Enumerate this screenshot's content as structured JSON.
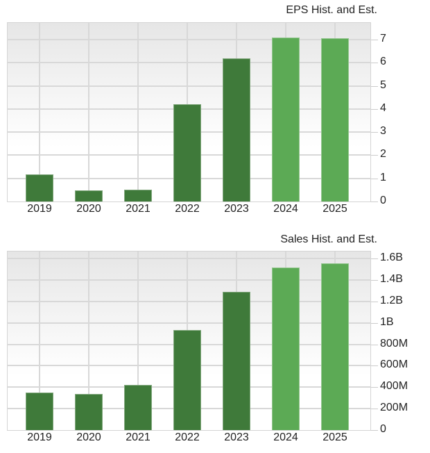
{
  "colors": {
    "historical": "#3f7a3a",
    "estimate": "#5caa55"
  },
  "charts": [
    {
      "title": "EPS Hist. and Est.",
      "y_tick_labels": [
        "0",
        "1",
        "2",
        "3",
        "4",
        "5",
        "6",
        "7"
      ],
      "x_labels": [
        "2019",
        "2020",
        "2021",
        "2022",
        "2023",
        "2024",
        "2025"
      ]
    },
    {
      "title": "Sales Hist. and Est.",
      "y_tick_labels": [
        "0",
        "200M",
        "400M",
        "600M",
        "800M",
        "1B",
        "1.2B",
        "1.4B",
        "1.6B"
      ],
      "x_labels": [
        "2019",
        "2020",
        "2021",
        "2022",
        "2023",
        "2024",
        "2025"
      ]
    }
  ],
  "chart_data": [
    {
      "type": "bar",
      "title": "EPS Hist. and Est.",
      "xlabel": "",
      "ylabel": "",
      "categories": [
        "2019",
        "2020",
        "2021",
        "2022",
        "2023",
        "2024",
        "2025"
      ],
      "series": [
        {
          "name": "Historical",
          "values": [
            1.17,
            0.48,
            0.51,
            4.2,
            6.2,
            null,
            null
          ],
          "color": "#3f7a3a"
        },
        {
          "name": "Estimate",
          "values": [
            null,
            null,
            null,
            null,
            null,
            7.08,
            7.05
          ],
          "color": "#5caa55"
        }
      ],
      "values": [
        1.17,
        0.48,
        0.51,
        4.2,
        6.2,
        7.08,
        7.05
      ],
      "estimate_flags": [
        false,
        false,
        false,
        false,
        false,
        true,
        true
      ],
      "ylim": [
        0,
        7.7
      ],
      "y_ticks": [
        0,
        1,
        2,
        3,
        4,
        5,
        6,
        7
      ],
      "y_axis_position": "right",
      "grid": true,
      "legend": null
    },
    {
      "type": "bar",
      "title": "Sales Hist. and Est.",
      "xlabel": "",
      "ylabel": "",
      "categories": [
        "2019",
        "2020",
        "2021",
        "2022",
        "2023",
        "2024",
        "2025"
      ],
      "series": [
        {
          "name": "Historical",
          "values": [
            350000000,
            337000000,
            420000000,
            930000000,
            1290000000,
            null,
            null
          ],
          "color": "#3f7a3a"
        },
        {
          "name": "Estimate",
          "values": [
            null,
            null,
            null,
            null,
            null,
            1515000000,
            1555000000
          ],
          "color": "#5caa55"
        }
      ],
      "values": [
        350000000,
        337000000,
        420000000,
        930000000,
        1290000000,
        1515000000,
        1555000000
      ],
      "estimate_flags": [
        false,
        false,
        false,
        false,
        false,
        true,
        true
      ],
      "ylim": [
        0,
        1670000000
      ],
      "y_ticks": [
        0,
        200000000,
        400000000,
        600000000,
        800000000,
        1000000000,
        1200000000,
        1400000000,
        1600000000
      ],
      "y_tick_labels": [
        "0",
        "200M",
        "400M",
        "600M",
        "800M",
        "1B",
        "1.2B",
        "1.4B",
        "1.6B"
      ],
      "y_axis_position": "right",
      "grid": true,
      "legend": null
    }
  ]
}
